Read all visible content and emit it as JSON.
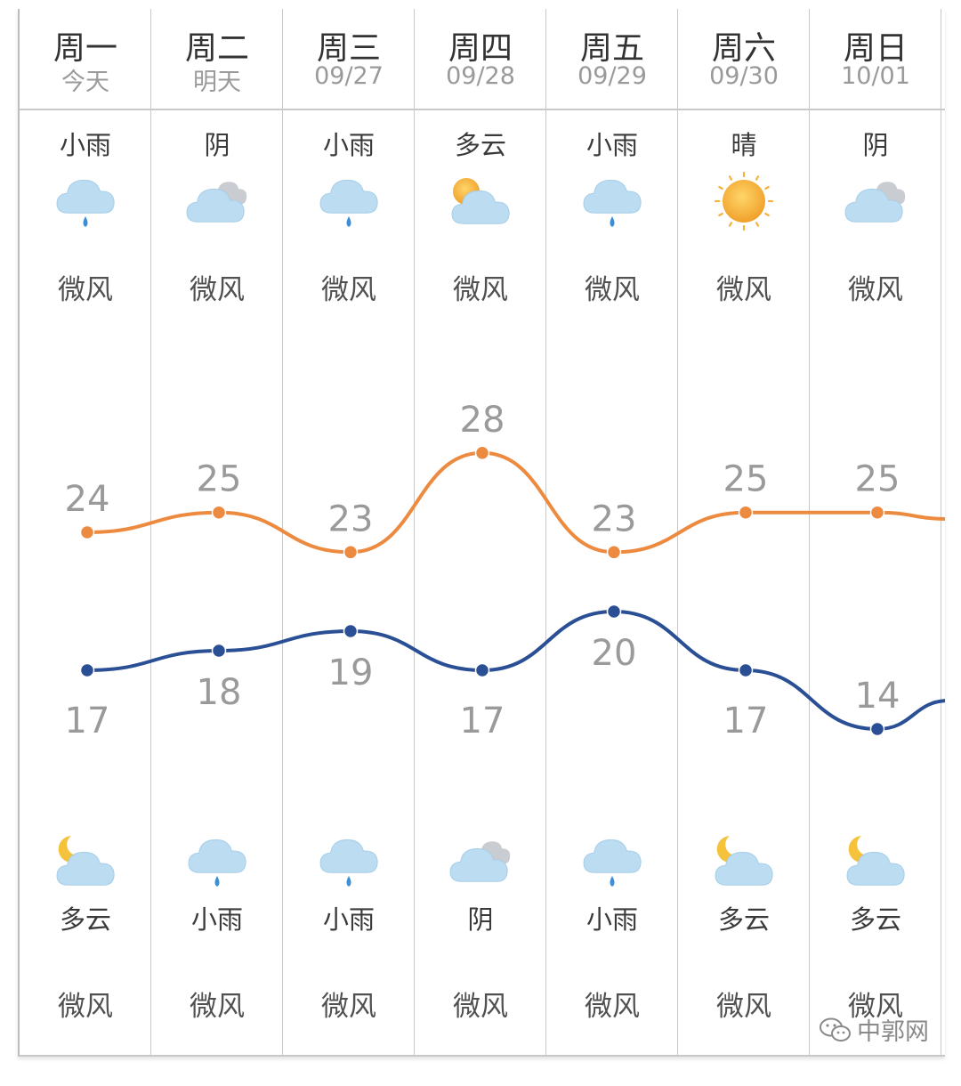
{
  "days": [
    {
      "day": "周一",
      "date": "今天",
      "day_cond": "小雨",
      "day_icon": "light-rain",
      "day_wind": "微风",
      "high": 24,
      "low": 17,
      "night_icon": "partly-cloudy-night",
      "night_cond": "多云",
      "night_wind": "微风"
    },
    {
      "day": "周二",
      "date": "明天",
      "day_cond": "阴",
      "day_icon": "overcast",
      "day_wind": "微风",
      "high": 25,
      "low": 18,
      "night_icon": "light-rain",
      "night_cond": "小雨",
      "night_wind": "微风"
    },
    {
      "day": "周三",
      "date": "09/27",
      "day_cond": "小雨",
      "day_icon": "light-rain",
      "day_wind": "微风",
      "high": 23,
      "low": 19,
      "night_icon": "light-rain",
      "night_cond": "小雨",
      "night_wind": "微风"
    },
    {
      "day": "周四",
      "date": "09/28",
      "day_cond": "多云",
      "day_icon": "partly-cloudy-day",
      "day_wind": "微风",
      "high": 28,
      "low": 17,
      "night_icon": "overcast",
      "night_cond": "阴",
      "night_wind": "微风"
    },
    {
      "day": "周五",
      "date": "09/29",
      "day_cond": "小雨",
      "day_icon": "light-rain",
      "day_wind": "微风",
      "high": 23,
      "low": 20,
      "night_icon": "light-rain",
      "night_cond": "小雨",
      "night_wind": "微风"
    },
    {
      "day": "周六",
      "date": "09/30",
      "day_cond": "晴",
      "day_icon": "sunny",
      "day_wind": "微风",
      "high": 25,
      "low": 17,
      "night_icon": "partly-cloudy-night",
      "night_cond": "多云",
      "night_wind": "微风"
    },
    {
      "day": "周日",
      "date": "10/01",
      "day_cond": "阴",
      "day_icon": "overcast",
      "day_wind": "微风",
      "high": 25,
      "low": 14,
      "night_icon": "partly-cloudy-night",
      "night_cond": "多云",
      "night_wind": "微风"
    }
  ],
  "colors": {
    "high_line": "#ec8a3f",
    "low_line": "#2a4f94"
  },
  "watermark": {
    "text": "中郭网",
    "icon": "wechat-icon"
  }
}
